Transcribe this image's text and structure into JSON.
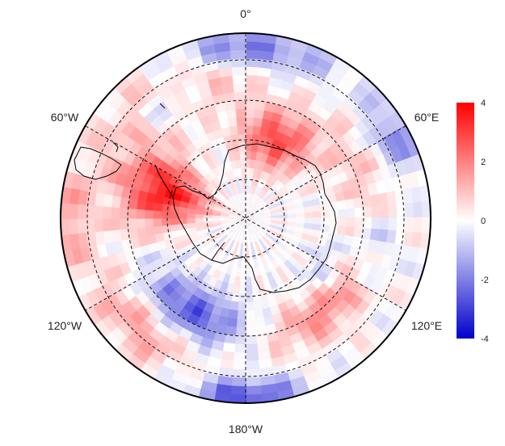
{
  "map": {
    "projection": "south-polar-stereographic",
    "longitude_labels": {
      "top": "0°",
      "upper_left": "60°W",
      "upper_right": "60°E",
      "lower_left": "120°W",
      "lower_right": "120°E",
      "bottom": "180°W"
    },
    "graticule": {
      "style": "dashed",
      "meridians_deg": [
        0,
        60,
        120
      ],
      "latitude_circles": 4
    },
    "coastlines": [
      "Antarctica",
      "South America tip"
    ]
  },
  "colorbar": {
    "ticks": [
      "4",
      "2",
      "0",
      "-2",
      "-4"
    ],
    "min": -4,
    "max": 4,
    "colors": {
      "max": "#ff0000",
      "mid": "#ffffff",
      "min": "#0000cc"
    }
  },
  "chart_data": {
    "type": "heatmap",
    "value_range": [
      -4,
      4
    ],
    "features": [
      {
        "name": "positive anomaly west of Antarctic Peninsula",
        "value": 3.5
      },
      {
        "name": "positive anomaly off East Antarctica (near 20°E-60°E)",
        "value": 3.0
      },
      {
        "name": "negative anomaly Ross/Amundsen Sea sector",
        "value": -2.5
      },
      {
        "name": "negative anomaly near 180°",
        "value": -3.0
      },
      {
        "name": "negative anomaly near 0°",
        "value": -2.0
      },
      {
        "name": "negative anomaly near 60°E outer ring",
        "value": -1.5
      }
    ]
  }
}
